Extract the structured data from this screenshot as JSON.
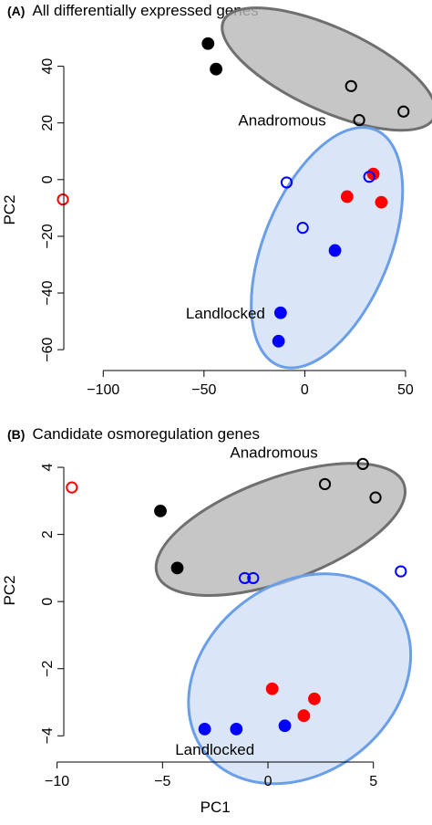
{
  "chart_data": [
    {
      "type": "scatter",
      "panel_label": "(A)",
      "title": "All differentially expressed genes",
      "xlabel": "",
      "ylabel": "PC2",
      "xlim": [
        -125,
        55
      ],
      "ylim": [
        -68,
        55
      ],
      "xticks": [
        -100,
        -50,
        0,
        50
      ],
      "yticks": [
        -60,
        -40,
        -20,
        0,
        20,
        40
      ],
      "grid": false,
      "legend": "none",
      "colors": {
        "black": "#000000",
        "red": "#ff0000",
        "blue": "#0000ff",
        "anadromous_fill": "#b9b9b9",
        "anadromous_edge": "#6f6f6f",
        "landlocked_fill": "#c4d6f2",
        "landlocked_edge": "#6a9ee8"
      },
      "groups": [
        {
          "label": "Anadromous",
          "label_at": [
            -33,
            21
          ],
          "ellipse": {
            "cx": 12,
            "cy": 39,
            "rx": 55,
            "ry": 15,
            "angle": -18
          },
          "fill": "#b9b9b9",
          "edge": "#6f6f6f"
        },
        {
          "label": "Landlocked",
          "label_at": [
            -59,
            -47
          ],
          "ellipse": {
            "cx": 11,
            "cy": -24,
            "rx": 48,
            "ry": 28,
            "angle": 60
          },
          "fill": "#c4d6f2",
          "edge": "#6a9ee8"
        }
      ],
      "points": [
        {
          "x": -48,
          "y": 48,
          "color": "black",
          "filled": true
        },
        {
          "x": -44,
          "y": 39,
          "color": "black",
          "filled": true
        },
        {
          "x": 23,
          "y": 33,
          "color": "black",
          "filled": false
        },
        {
          "x": 27,
          "y": 21,
          "color": "black",
          "filled": false
        },
        {
          "x": 49,
          "y": 24,
          "color": "black",
          "filled": false
        },
        {
          "x": -120,
          "y": -7,
          "color": "red",
          "filled": false
        },
        {
          "x": 34,
          "y": 2,
          "color": "red",
          "filled": true
        },
        {
          "x": 21,
          "y": -6,
          "color": "red",
          "filled": true
        },
        {
          "x": 38,
          "y": -8,
          "color": "red",
          "filled": true
        },
        {
          "x": -9,
          "y": -1,
          "color": "blue",
          "filled": false
        },
        {
          "x": 32,
          "y": 1,
          "color": "blue",
          "filled": false
        },
        {
          "x": -1,
          "y": -17,
          "color": "blue",
          "filled": false
        },
        {
          "x": 15,
          "y": -25,
          "color": "blue",
          "filled": true
        },
        {
          "x": -12,
          "y": -47,
          "color": "blue",
          "filled": true
        },
        {
          "x": -13,
          "y": -57,
          "color": "blue",
          "filled": true
        }
      ]
    },
    {
      "type": "scatter",
      "panel_label": "(B)",
      "title": "Candidate osmoregulation genes",
      "xlabel": "PC1",
      "ylabel": "PC2",
      "xlim": [
        -10.2,
        7
      ],
      "ylim": [
        -4.7,
        4.6
      ],
      "xticks": [
        -10,
        -5,
        0,
        5
      ],
      "yticks": [
        -4,
        -2,
        0,
        2,
        4
      ],
      "grid": false,
      "legend": "none",
      "colors": {
        "black": "#000000",
        "red": "#ff0000",
        "blue": "#0000ff",
        "anadromous_fill": "#b9b9b9",
        "anadromous_edge": "#6f6f6f",
        "landlocked_fill": "#c4d6f2",
        "landlocked_edge": "#6a9ee8"
      },
      "groups": [
        {
          "label": "Anadromous",
          "label_at": [
            -1.8,
            4.45
          ],
          "ellipse": {
            "cx": 0.6,
            "cy": 2.15,
            "rx": 6.0,
            "ry": 1.55,
            "angle": 13
          },
          "fill": "#b9b9b9",
          "edge": "#6f6f6f"
        },
        {
          "label": "Landlocked",
          "label_at": [
            -4.4,
            -4.4
          ],
          "ellipse": {
            "cx": 1.5,
            "cy": -2.3,
            "rx": 5.0,
            "ry": 3.0,
            "angle": 26
          },
          "fill": "#c4d6f2",
          "edge": "#6a9ee8"
        }
      ],
      "points": [
        {
          "x": -5.1,
          "y": 2.7,
          "color": "black",
          "filled": true
        },
        {
          "x": -4.3,
          "y": 1.0,
          "color": "black",
          "filled": true
        },
        {
          "x": 2.7,
          "y": 3.5,
          "color": "black",
          "filled": false
        },
        {
          "x": 4.5,
          "y": 4.1,
          "color": "black",
          "filled": false
        },
        {
          "x": 5.1,
          "y": 3.1,
          "color": "black",
          "filled": false
        },
        {
          "x": -9.3,
          "y": 3.4,
          "color": "red",
          "filled": false
        },
        {
          "x": 0.2,
          "y": -2.6,
          "color": "red",
          "filled": true
        },
        {
          "x": 2.2,
          "y": -2.9,
          "color": "red",
          "filled": true
        },
        {
          "x": 1.7,
          "y": -3.4,
          "color": "red",
          "filled": true
        },
        {
          "x": -1.1,
          "y": 0.7,
          "color": "blue",
          "filled": false
        },
        {
          "x": -0.7,
          "y": 0.7,
          "color": "blue",
          "filled": false
        },
        {
          "x": 6.3,
          "y": 0.9,
          "color": "blue",
          "filled": false
        },
        {
          "x": 0.8,
          "y": -3.7,
          "color": "blue",
          "filled": true
        },
        {
          "x": -1.5,
          "y": -3.8,
          "color": "blue",
          "filled": true
        },
        {
          "x": -3.0,
          "y": -3.8,
          "color": "blue",
          "filled": true
        }
      ]
    }
  ]
}
